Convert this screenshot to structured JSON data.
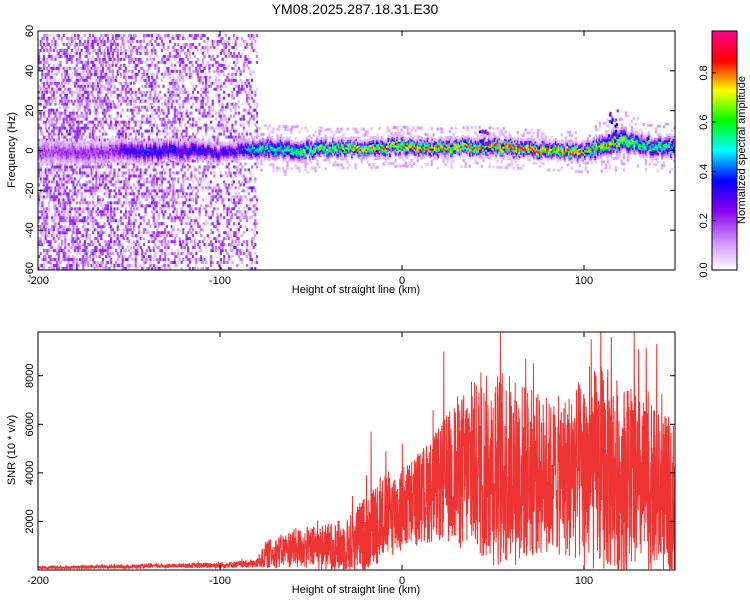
{
  "figure": {
    "title": "YM08.2025.287.18.31.E30"
  },
  "colors": {
    "background": "#ffffff",
    "axis": "#000000",
    "snr_line": "#ee3333",
    "colormap": [
      "#ffffff",
      "#cc88ff",
      "#8800ee",
      "#0000ff",
      "#00ffff",
      "#00ff00",
      "#ffff00",
      "#ff0000",
      "#ff0088"
    ]
  },
  "chart_data": [
    {
      "type": "heatmap",
      "name": "spectrogram",
      "xlabel": "Height of straight line (km)",
      "ylabel": "Frequency (Hz)",
      "xlim": [
        -200,
        150
      ],
      "ylim": [
        -60,
        60
      ],
      "xticks": [
        -200,
        -100,
        0,
        100
      ],
      "yticks": [
        -60,
        -40,
        -20,
        0,
        20,
        40,
        60
      ],
      "colorbar": {
        "label": "Normalized spectral amplitude",
        "range": [
          0,
          0.97
        ],
        "ticks": [
          0.0,
          0.2,
          0.4,
          0.6,
          0.8
        ]
      },
      "noise_region": {
        "x_range": [
          -200,
          -80
        ],
        "freq_range": [
          -60,
          60
        ],
        "amplitude": [
          0.05,
          0.3
        ]
      },
      "signal_band": {
        "x": [
          -200,
          -160,
          -150,
          -140,
          -120,
          -100,
          -90,
          -80,
          -60,
          -40,
          -20,
          0,
          20,
          40,
          60,
          80,
          100,
          110,
          120,
          130,
          150
        ],
        "center_freq": [
          0,
          0,
          1,
          0,
          1,
          0,
          1,
          2,
          1,
          2,
          2,
          3,
          2,
          3,
          2,
          1,
          0,
          3,
          6,
          4,
          2
        ],
        "half_width": [
          7,
          7,
          6,
          6,
          6,
          5,
          5,
          5,
          5,
          4,
          4,
          4,
          4,
          4,
          4,
          4,
          4,
          5,
          6,
          5,
          5
        ],
        "peak_amplitude": [
          0.2,
          0.22,
          0.35,
          0.38,
          0.35,
          0.33,
          0.34,
          0.55,
          0.62,
          0.7,
          0.8,
          0.85,
          0.82,
          0.85,
          0.92,
          0.9,
          0.8,
          0.75,
          0.72,
          0.62,
          0.55
        ]
      },
      "annotations": [
        {
          "x": 45,
          "freq": 12,
          "amplitude": 0.3
        },
        {
          "x": 115,
          "freq": 22,
          "amplitude": 0.35
        }
      ]
    },
    {
      "type": "line",
      "name": "snr",
      "xlabel": "Height of straight line (km)",
      "ylabel": "SNR (10 * v/v)",
      "xlim": [
        -200,
        150
      ],
      "ylim": [
        0,
        9800
      ],
      "xticks": [
        -200,
        -100,
        0,
        100
      ],
      "yticks": [
        2000,
        4000,
        6000,
        8000
      ],
      "series": [
        {
          "name": "SNR",
          "envelope_x": [
            -200,
            -160,
            -120,
            -100,
            -90,
            -80,
            -75,
            -70,
            -60,
            -50,
            -40,
            -30,
            -20,
            -10,
            0,
            10,
            20,
            25,
            30,
            40,
            50,
            60,
            70,
            80,
            90,
            100,
            110,
            120,
            130,
            140,
            150
          ],
          "envelope_mean": [
            100,
            130,
            180,
            200,
            230,
            260,
            600,
            700,
            900,
            900,
            950,
            1000,
            1500,
            2200,
            2500,
            3000,
            3500,
            3800,
            4000,
            4200,
            4200,
            4100,
            4000,
            3800,
            3900,
            4000,
            4200,
            3800,
            3600,
            3200,
            3000
          ],
          "envelope_spread": [
            60,
            80,
            100,
            150,
            150,
            200,
            600,
            700,
            900,
            1000,
            1100,
            1300,
            1800,
            2000,
            2000,
            2200,
            2600,
            3000,
            3500,
            4000,
            4500,
            4500,
            4000,
            3500,
            3800,
            4500,
            4800,
            4500,
            4000,
            3800,
            3500
          ],
          "peaks": [
            {
              "x": -17,
              "y": 5700
            },
            {
              "x": 23,
              "y": 9000
            },
            {
              "x": 54,
              "y": 9800
            },
            {
              "x": 68,
              "y": 8700
            },
            {
              "x": 104,
              "y": 9500
            },
            {
              "x": 115,
              "y": 9600
            },
            {
              "x": 130,
              "y": 9100
            },
            {
              "x": 140,
              "y": 9300
            }
          ]
        }
      ]
    }
  ]
}
